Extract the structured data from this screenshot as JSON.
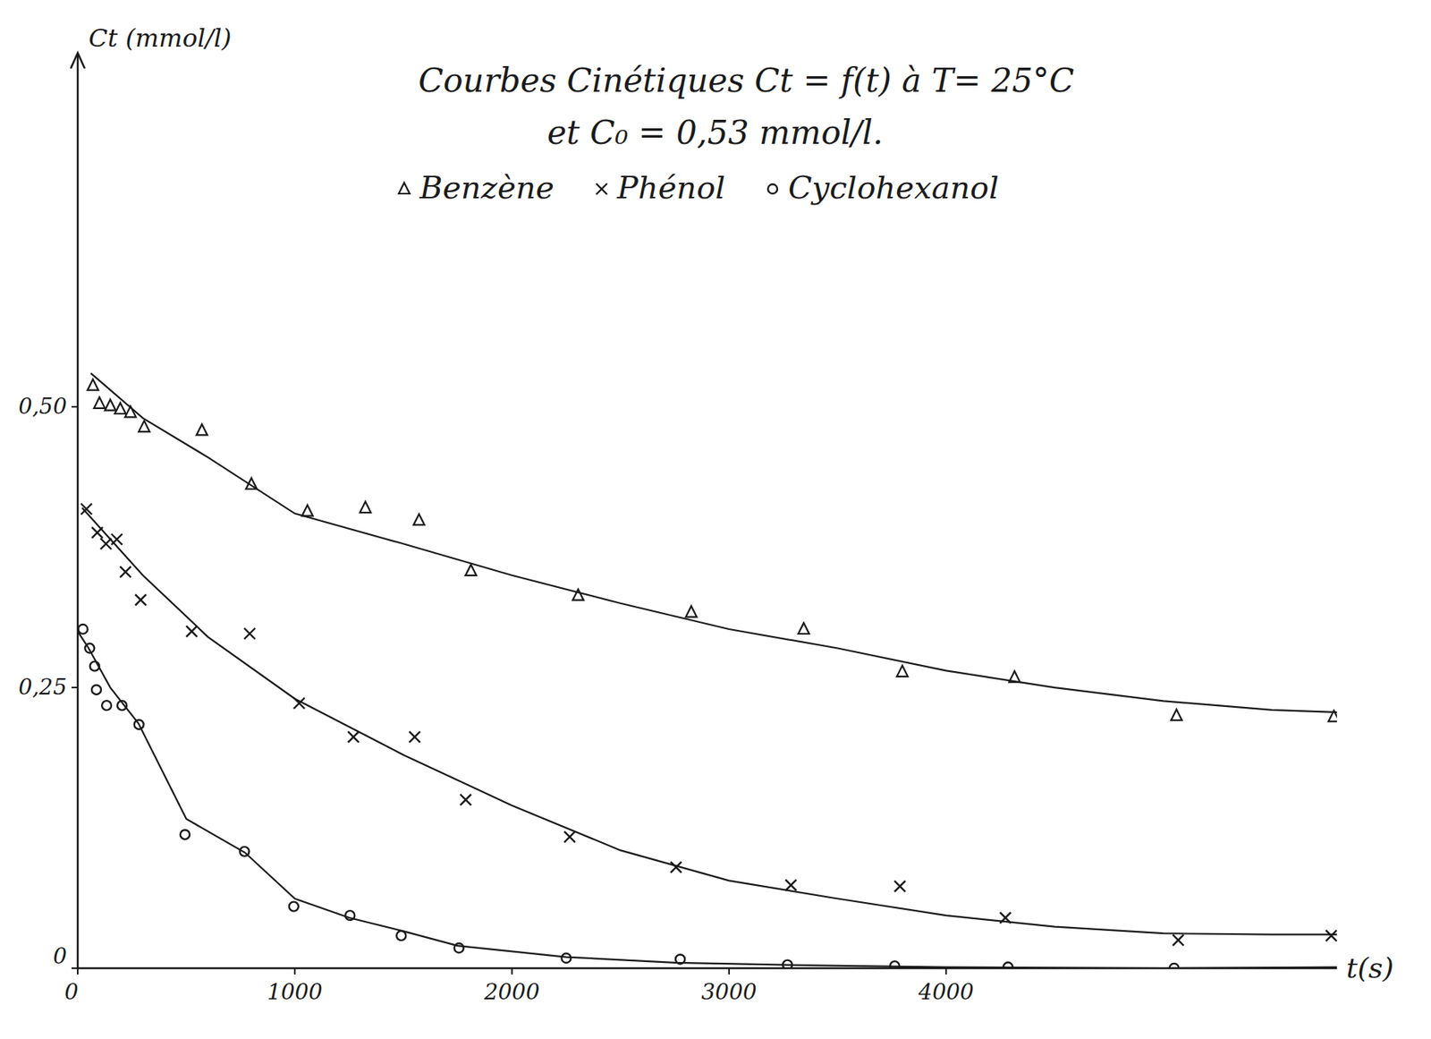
{
  "chart_data": {
    "type": "scatter",
    "title": "Courbes Cinétiques  Ct = f(t) à T= 25°C",
    "subtitle": "et  C₀ = 0,53 mmol/l.",
    "x_label": "t(s)",
    "y_label": "Ct (mmol/l)",
    "xlim": [
      0,
      5800
    ],
    "ylim": [
      0,
      0.8
    ],
    "xticks": [
      0,
      1000,
      2000,
      3000,
      4000
    ],
    "yticks": [
      0,
      {
        "value": 0.25,
        "label": "0,25"
      },
      {
        "value": 0.5,
        "label": "0,50"
      }
    ],
    "grid": false,
    "legend": "top",
    "series": [
      {
        "name": "Benzène",
        "color": "#1a1a1a",
        "marker": "triangle",
        "x": [
          70,
          100,
          150,
          196,
          243,
          306,
          572,
          800,
          1058,
          1325,
          1572,
          1811,
          2305,
          2826,
          3344,
          3798,
          4315,
          5061,
          5786
        ],
        "values": [
          0.519,
          0.503,
          0.501,
          0.498,
          0.495,
          0.482,
          0.479,
          0.431,
          0.407,
          0.41,
          0.399,
          0.354,
          0.332,
          0.317,
          0.302,
          0.264,
          0.259,
          0.225,
          0.224
        ],
        "fit_x": [
          60,
          300,
          600,
          1000,
          1500,
          2000,
          2500,
          3000,
          3500,
          4000,
          4500,
          5000,
          5500,
          5800
        ],
        "fit_values": [
          0.53,
          0.49,
          0.455,
          0.405,
          0.378,
          0.35,
          0.325,
          0.302,
          0.285,
          0.265,
          0.25,
          0.238,
          0.23,
          0.228
        ]
      },
      {
        "name": "Phénol",
        "color": "#1a1a1a",
        "marker": "x",
        "x": [
          40,
          90,
          130,
          180,
          220,
          290,
          525,
          792,
          1020,
          1270,
          1552,
          1787,
          2266,
          2756,
          3285,
          3787,
          4273,
          5069,
          5774
        ],
        "values": [
          0.409,
          0.388,
          0.378,
          0.382,
          0.353,
          0.328,
          0.3,
          0.298,
          0.236,
          0.206,
          0.206,
          0.15,
          0.117,
          0.09,
          0.074,
          0.073,
          0.045,
          0.025,
          0.029
        ],
        "fit_x": [
          20,
          300,
          600,
          1000,
          1500,
          2000,
          2500,
          3000,
          3500,
          4000,
          4500,
          5000,
          5500,
          5800
        ],
        "fit_values": [
          0.41,
          0.35,
          0.295,
          0.24,
          0.19,
          0.145,
          0.105,
          0.078,
          0.062,
          0.047,
          0.037,
          0.031,
          0.03,
          0.03
        ]
      },
      {
        "name": "Cyclohexanol",
        "color": "#1a1a1a",
        "marker": "circle",
        "x": [
          24,
          55,
          78,
          86,
          133,
          204,
          282,
          494,
          768,
          995,
          1254,
          1490,
          1756,
          2250,
          2775,
          3269,
          3763,
          4285,
          5050
        ],
        "values": [
          0.302,
          0.285,
          0.269,
          0.248,
          0.234,
          0.234,
          0.217,
          0.119,
          0.104,
          0.055,
          0.047,
          0.029,
          0.018,
          0.009,
          0.008,
          0.003,
          0.002,
          0.001,
          0.0
        ],
        "fit_x": [
          0,
          50,
          150,
          280,
          500,
          770,
          1000,
          1250,
          1500,
          1750,
          2250,
          2750,
          3250,
          4000,
          5000,
          5800
        ],
        "fit_values": [
          0.3,
          0.285,
          0.25,
          0.218,
          0.133,
          0.103,
          0.062,
          0.045,
          0.033,
          0.02,
          0.01,
          0.005,
          0.003,
          0.001,
          0.0,
          0.001
        ]
      }
    ]
  }
}
